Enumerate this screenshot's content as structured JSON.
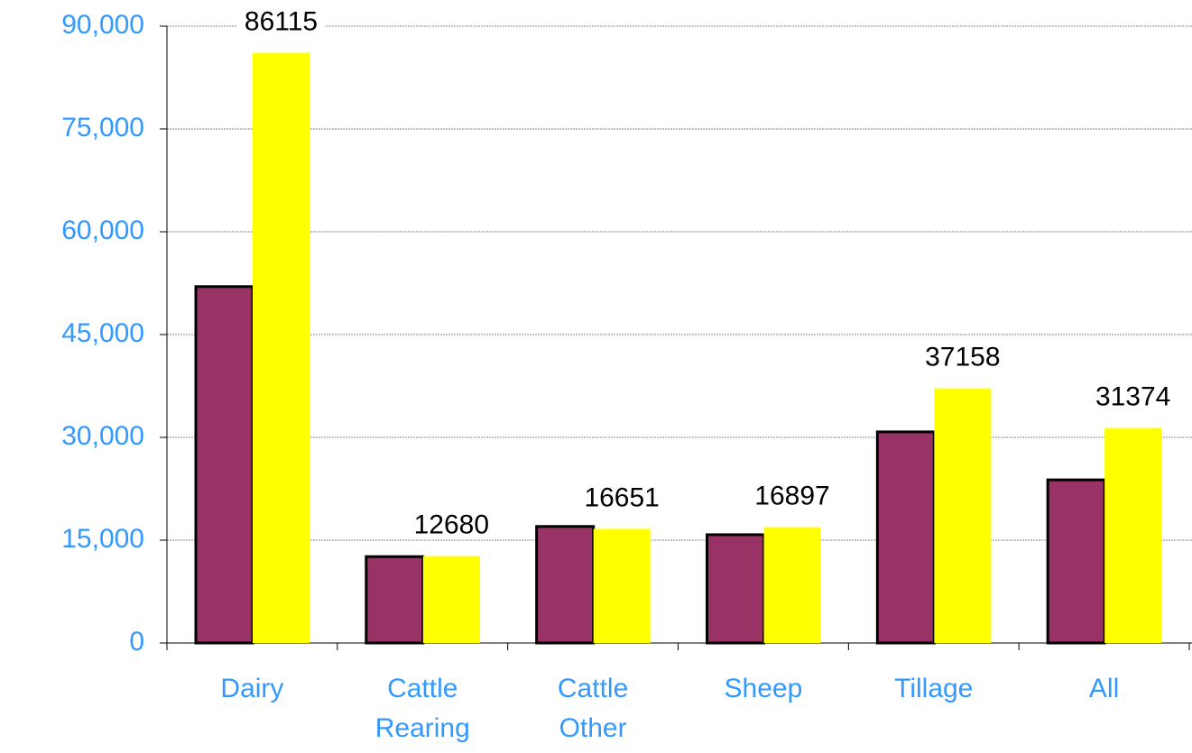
{
  "chart_data": {
    "type": "bar",
    "categories": [
      "Dairy",
      "Cattle Rearing",
      "Cattle Other",
      "Sheep",
      "Tillage",
      "All"
    ],
    "series": [
      {
        "color": "#993366",
        "values": [
          52000,
          12600,
          17000,
          15800,
          30800,
          23800
        ]
      },
      {
        "color": "#ffff00",
        "values": [
          86115,
          12680,
          16651,
          16897,
          37158,
          31374
        ]
      }
    ],
    "ylim": [
      0,
      90000
    ],
    "yticks": [
      0,
      {
        "value": 15000,
        "label": "15,000"
      },
      {
        "value": 30000,
        "label": "30,000"
      },
      {
        "value": 45000,
        "label": "45,000"
      },
      {
        "value": 60000,
        "label": "60,000"
      },
      {
        "value": 75000,
        "label": "75,000"
      },
      {
        "value": 90000,
        "label": "90,000"
      }
    ],
    "grid": true
  }
}
